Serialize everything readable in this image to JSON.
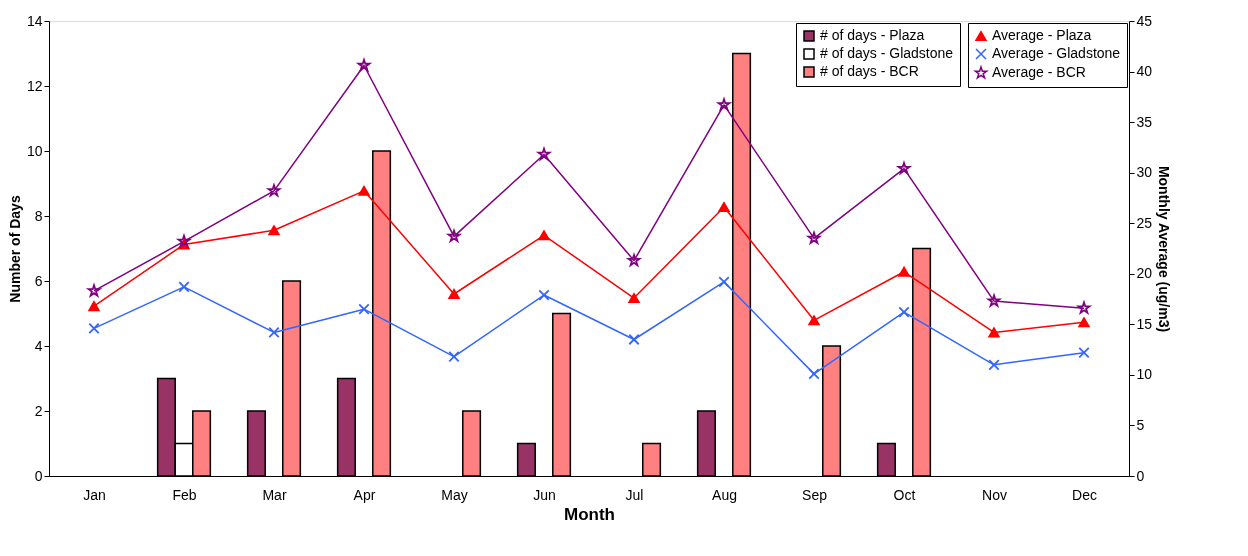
{
  "chart_data": {
    "type": "bar",
    "xlabel": "Month",
    "ylabel": "Number of Days",
    "y2label": "Monthly Average (ug/m3)",
    "categories": [
      "Jan",
      "Feb",
      "Mar",
      "Apr",
      "May",
      "Jun",
      "Jul",
      "Aug",
      "Sep",
      "Oct",
      "Nov",
      "Dec"
    ],
    "ylim": [
      0,
      14
    ],
    "yticks": [
      0,
      2,
      4,
      6,
      8,
      10,
      12,
      14
    ],
    "y2lim": [
      0,
      45
    ],
    "y2ticks": [
      0,
      5,
      10,
      15,
      20,
      25,
      30,
      35,
      40,
      45
    ],
    "grid": false,
    "legend": "top right",
    "series": [
      {
        "name": "# of days - Plaza",
        "color": "#993366",
        "values": [
          0,
          3,
          2,
          3,
          0,
          1,
          0,
          2,
          0,
          1,
          0,
          0
        ]
      },
      {
        "name": "# of days - Gladstone",
        "color": "#ffffff",
        "values": [
          0,
          1,
          0,
          0,
          0,
          0,
          0,
          0,
          0,
          0,
          0,
          0
        ]
      },
      {
        "name": "# of days - BCR",
        "color": "#ff8080",
        "values": [
          0,
          2,
          6,
          10,
          2,
          5,
          1,
          13,
          4,
          7,
          0,
          0
        ]
      },
      {
        "name": "Average - Plaza",
        "type": "line",
        "axis": "y2",
        "color": "#ff0000",
        "marker": "triangle",
        "values": [
          16.8,
          22.9,
          24.3,
          28.2,
          18.0,
          23.8,
          17.6,
          26.6,
          15.4,
          20.2,
          14.2,
          15.2
        ]
      },
      {
        "name": "Average - Gladstone",
        "type": "line",
        "axis": "y2",
        "color": "#3366ff",
        "marker": "cross",
        "values": [
          14.6,
          18.7,
          14.2,
          16.5,
          11.8,
          17.9,
          13.5,
          19.2,
          10.1,
          16.2,
          11.0,
          12.2
        ]
      },
      {
        "name": "Average - BCR",
        "type": "line",
        "axis": "y2",
        "color": "#800080",
        "marker": "star",
        "values": [
          18.3,
          23.2,
          28.2,
          40.6,
          23.7,
          31.8,
          21.3,
          36.7,
          23.5,
          30.4,
          17.3,
          16.6
        ]
      }
    ]
  }
}
